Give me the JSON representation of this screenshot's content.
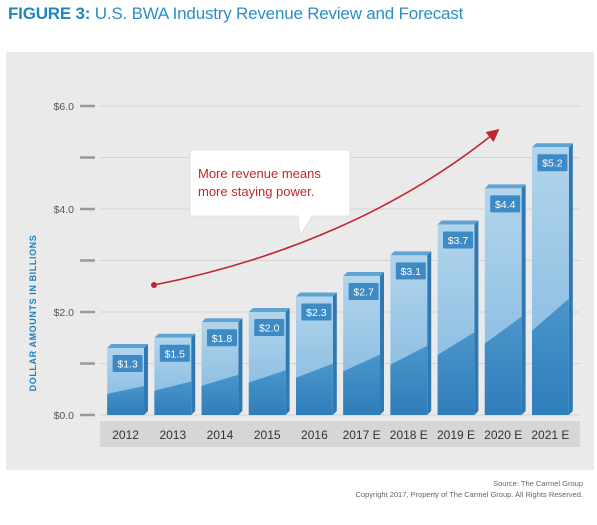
{
  "figure": {
    "label": "FIGURE 3:",
    "title": "U.S. BWA Industry Revenue Review and Forecast"
  },
  "callout": {
    "line1": "More revenue means",
    "line2": "more staying power."
  },
  "footer": {
    "source": "Source: The Carmel Group",
    "copyright": "Copyright 2017, Property of The Carmel Group. All Rights Reserved."
  },
  "colors": {
    "bar_top": "#a6cde8",
    "bar_bottom": "#3d8cc4",
    "bar_dark": "#3a86c0",
    "label_bg": "#3d8ac5",
    "arrow": "#c0272d",
    "callout_text": "#c0272d",
    "axis_label": "#1d7fbf"
  },
  "chart_data": {
    "type": "bar",
    "categories": [
      "2012",
      "2013",
      "2014",
      "2015",
      "2016",
      "2017 E",
      "2018 E",
      "2019 E",
      "2020 E",
      "2021 E"
    ],
    "values": [
      1.3,
      1.5,
      1.8,
      2.0,
      2.3,
      2.7,
      3.1,
      3.7,
      4.4,
      5.2
    ],
    "value_labels": [
      "$1.3",
      "$1.5",
      "$1.8",
      "$2.0",
      "$2.3",
      "$2.7",
      "$3.1",
      "$3.7",
      "$4.4",
      "$5.2"
    ],
    "ylabel": "DOLLAR AMOUNTS IN BILLIONS",
    "ylim": [
      0,
      6
    ],
    "yticks": [
      0,
      1,
      2,
      3,
      4,
      5,
      6
    ],
    "ytick_labels": [
      "$0.0",
      "",
      "$2.0",
      "",
      "$4.0",
      "",
      "$6.0"
    ],
    "grid": true,
    "legend": "none"
  }
}
